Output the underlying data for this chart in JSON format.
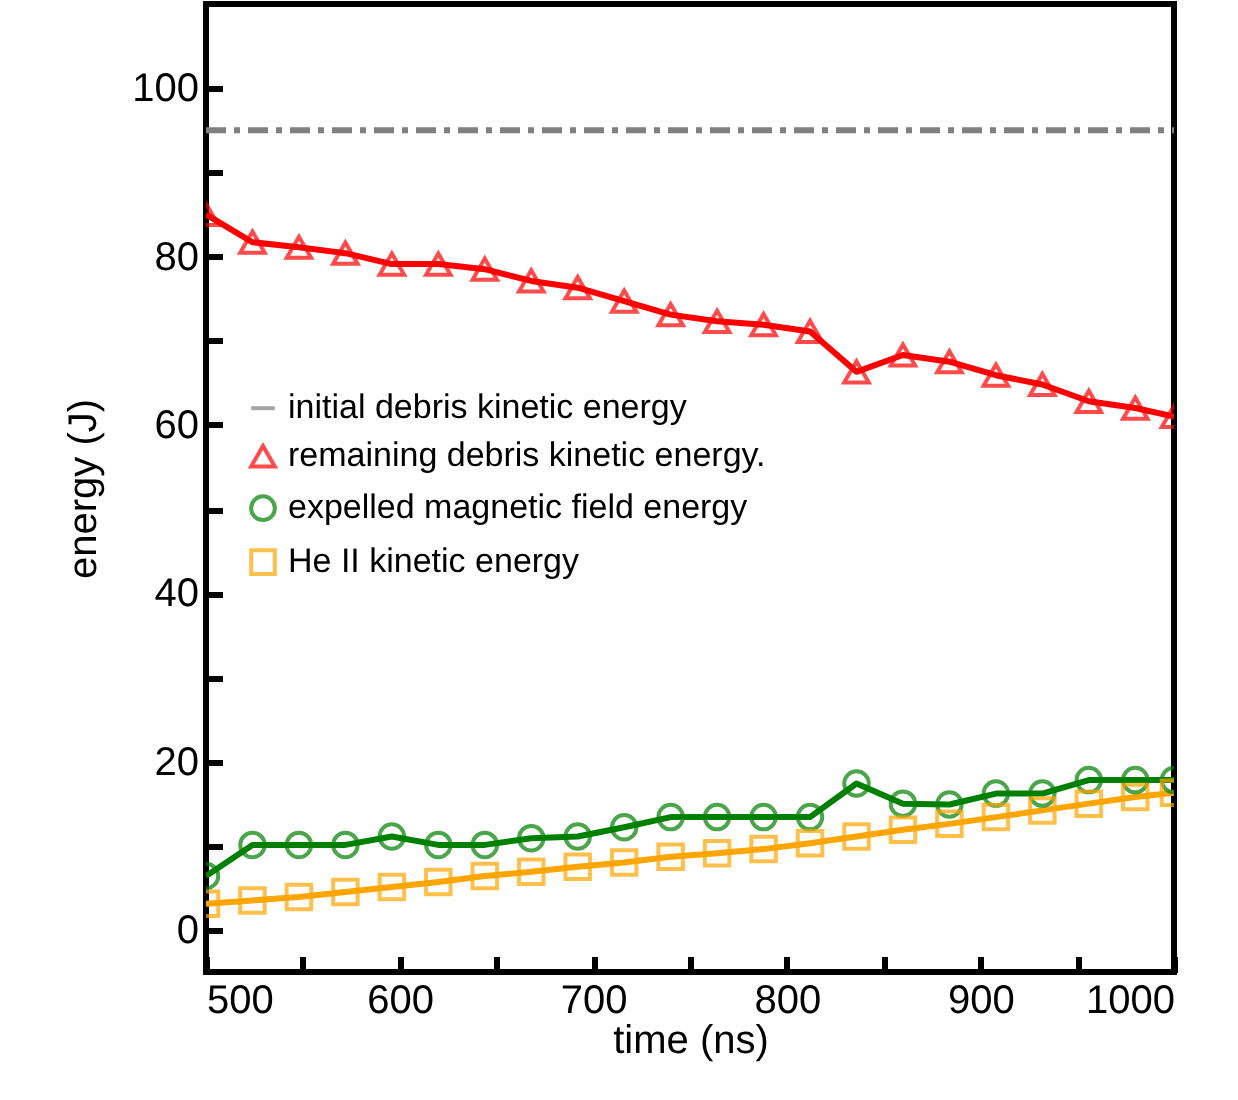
{
  "chart_data": {
    "type": "line",
    "xlabel": "time (ns)",
    "ylabel": "energy (J)",
    "xlim": [
      500,
      1000
    ],
    "ylim": [
      -5,
      110
    ],
    "xticks": [
      500,
      {
        "value": 550,
        "label": null
      },
      600,
      {
        "value": 650,
        "label": null
      },
      700,
      {
        "value": 750,
        "label": null
      },
      800,
      {
        "value": 850,
        "label": null
      },
      900,
      {
        "value": 950,
        "label": null
      },
      1000
    ],
    "yticks": [
      0,
      {
        "value": 10,
        "label": null
      },
      20,
      {
        "value": 30,
        "label": null
      },
      40,
      {
        "value": 50,
        "label": null
      },
      60,
      {
        "value": 70,
        "label": null
      },
      80,
      {
        "value": 90,
        "label": null
      },
      100
    ],
    "grid": false,
    "legend": "left",
    "series": [
      {
        "name": "initial debris kinetic energy",
        "color": "#808080",
        "marker": "none",
        "line_style": "dashed",
        "x": [
          500,
          1000
        ],
        "values": [
          95,
          95
        ]
      },
      {
        "name": "remaining debris kinetic energy.",
        "color": "#ff0000",
        "marker": "triangle",
        "x": [
          500,
          524,
          548,
          572,
          596,
          620,
          644,
          668,
          692,
          716,
          740,
          764,
          788,
          812,
          836,
          860,
          884,
          908,
          932,
          956,
          980,
          1000
        ],
        "values": [
          85,
          81.7,
          81.1,
          80.4,
          79.1,
          79.1,
          78.5,
          77.1,
          76.3,
          74.7,
          73.1,
          72.3,
          71.9,
          71.1,
          66.3,
          68.3,
          67.5,
          65.9,
          64.8,
          62.8,
          62,
          61
        ]
      },
      {
        "name": "expelled magnetic field energy",
        "color": "#008000",
        "marker": "circle",
        "x": [
          500,
          524,
          548,
          572,
          596,
          620,
          644,
          668,
          692,
          716,
          740,
          764,
          788,
          812,
          836,
          860,
          884,
          908,
          932,
          956,
          980,
          1000
        ],
        "values": [
          6.4,
          10.1,
          10.1,
          10.1,
          11.1,
          10.1,
          10.1,
          10.9,
          11.1,
          12.2,
          13.4,
          13.4,
          13.4,
          13.4,
          17.4,
          15,
          14.9,
          16.2,
          16.2,
          17.8,
          17.8,
          17.8
        ]
      },
      {
        "name": "He II kinetic energy",
        "color": "#ffa500",
        "marker": "square",
        "x": [
          500,
          524,
          548,
          572,
          596,
          620,
          644,
          668,
          692,
          716,
          740,
          764,
          788,
          812,
          836,
          860,
          884,
          908,
          932,
          956,
          980,
          1000
        ],
        "values": [
          3.1,
          3.5,
          3.9,
          4.5,
          5.1,
          5.7,
          6.4,
          6.9,
          7.5,
          8,
          8.7,
          9.1,
          9.6,
          10.3,
          11.1,
          11.9,
          12.6,
          13.4,
          14.2,
          15,
          15.8,
          16.3
        ]
      }
    ]
  }
}
